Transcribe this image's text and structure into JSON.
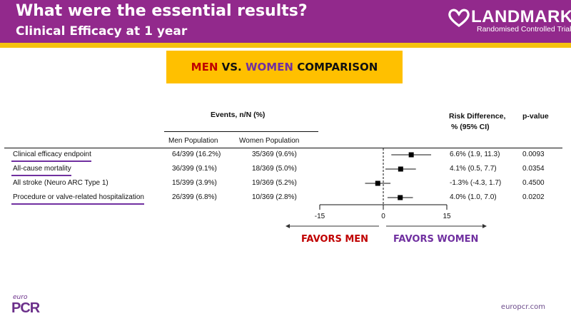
{
  "header": {
    "title": "What were the essential results?",
    "subtitle": "Clinical Efficacy at 1 year",
    "logo_name": "LANDMARK",
    "logo_tagline": "Randomised Controlled Trial",
    "colors": {
      "bar": "#92298c",
      "stripe": "#f5c20f"
    }
  },
  "banner": {
    "men": "MEN",
    "vs": " VS. ",
    "women": "WOMEN",
    "comparison": " COMPARISON",
    "colors": {
      "background": "#ffc000",
      "men": "#c00000",
      "women": "#7030a0"
    }
  },
  "table": {
    "events_header": "Events, n/N (%)",
    "col_men": "Men Population",
    "col_women": "Women Population",
    "col_rd": "Risk Difference,",
    "col_rd2": "% (95% CI)",
    "col_p": "p-value",
    "rows": [
      {
        "label": "Clinical efficacy endpoint",
        "men": "64/399 (16.2%)",
        "women": "35/369 (9.6%)",
        "rd": "6.6% (1.9, 11.3)",
        "p": "0.0093",
        "underlined": true
      },
      {
        "label": "All-cause mortality",
        "men": "36/399 (9.1%)",
        "women": "18/369 (5.0%)",
        "rd": "4.1% (0.5, 7.7)",
        "p": "0.0354",
        "underlined": true
      },
      {
        "label": "All stroke (Neuro ARC Type 1)",
        "men": "15/399 (3.9%)",
        "women": "19/369 (5.2%)",
        "rd": "-1.3% (-4.3, 1.7)",
        "p": "0.4500",
        "underlined": false
      },
      {
        "label": "Procedure or valve-related hospitalization",
        "men": "26/399 (6.8%)",
        "women": "10/369 (2.8%)",
        "rd": "4.0% (1.0, 7.0)",
        "p": "0.0202",
        "underlined": true
      }
    ]
  },
  "chart_data": {
    "type": "forest",
    "xlim": [
      -15,
      15
    ],
    "ticks": [
      "-15",
      "0",
      "15"
    ],
    "tick_values": [
      -15,
      0,
      15
    ],
    "reference": 0,
    "points": [
      {
        "label": "Clinical efficacy endpoint",
        "est": 6.6,
        "lo": 1.9,
        "hi": 11.3
      },
      {
        "label": "All-cause mortality",
        "est": 4.1,
        "lo": 0.5,
        "hi": 7.7
      },
      {
        "label": "All stroke (Neuro ARC Type 1)",
        "est": -1.3,
        "lo": -4.3,
        "hi": 1.7
      },
      {
        "label": "Procedure or valve-related hospitalization",
        "est": 4.0,
        "lo": 1.0,
        "hi": 7.0
      }
    ],
    "favors_left": "FAVORS MEN",
    "favors_right": "FAVORS WOMEN"
  },
  "footer": {
    "logo_euro": "euro",
    "logo_pcr": "PCR",
    "site": "europcr.com"
  }
}
